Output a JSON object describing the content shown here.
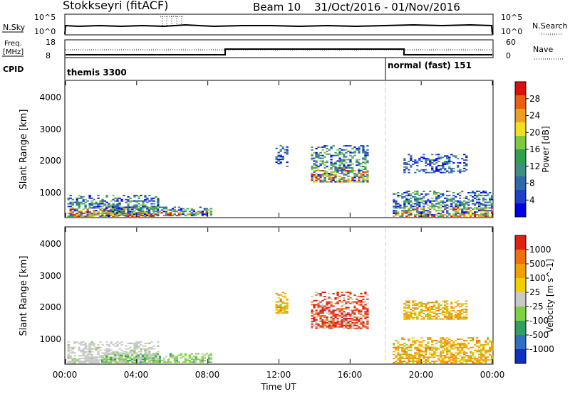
{
  "header": {
    "title": "Stokkseyri (fitACF)",
    "beam": "Beam 10",
    "date_range": "31/Oct/2016 - 01/Nov/2016"
  },
  "status_panels": {
    "nsky_label": "N.Sky",
    "nsky_ticks": [
      "10^5",
      "10^0"
    ],
    "nsearch_label": "N.Search",
    "nsearch_ticks": [
      "10^5",
      "10^0"
    ],
    "freq_label_1": "Freq.",
    "freq_label_2": "[MHz]",
    "freq_ticks": [
      "18",
      "8"
    ],
    "nave_label": "Nave",
    "nave_ticks": [
      "60",
      "0"
    ],
    "cpid_label": "CPID",
    "cpid_1": "themis 3300",
    "cpid_2": "normal (fast) 151"
  },
  "axes": {
    "xlabel": "Time UT",
    "x_ticks": [
      "00:00",
      "04:00",
      "08:00",
      "12:00",
      "16:00",
      "20:00",
      "00:00"
    ],
    "ylabel": "Slant Range [km]",
    "y_ticks": [
      "4000",
      "3000",
      "2000",
      "1000"
    ]
  },
  "chart_data": [
    {
      "type": "heatmap",
      "panel": "power",
      "ylabel": "Slant Range [km]",
      "xlabel": "Time UT",
      "x_range_hours": [
        0,
        24
      ],
      "y_range_km": [
        180,
        4600
      ],
      "colorbar_label": "Power [dB]",
      "colorbar_ticks": [
        "28",
        "24",
        "20",
        "16",
        "12",
        "8",
        "4"
      ],
      "colorbar_colors": [
        "#0000e6",
        "#2040c8",
        "#2f6aa8",
        "#3f8f80",
        "#2fa050",
        "#80c840",
        "#f0e020",
        "#f0a020",
        "#e86010",
        "#dd1010"
      ],
      "regions": [
        {
          "t": [
            0.1,
            5.2
          ],
          "r": [
            180,
            900
          ],
          "level": "mixed"
        },
        {
          "t": [
            2.0,
            8.2
          ],
          "r": [
            200,
            500
          ],
          "level": "mixed"
        },
        {
          "t": [
            11.8,
            12.4
          ],
          "r": [
            1800,
            2500
          ],
          "level": "low"
        },
        {
          "t": [
            13.8,
            17.0
          ],
          "r": [
            1300,
            2500
          ],
          "level": "mixed"
        },
        {
          "t": [
            18.4,
            24.0
          ],
          "r": [
            180,
            1000
          ],
          "level": "mixed"
        },
        {
          "t": [
            19.0,
            22.5
          ],
          "r": [
            1600,
            2200
          ],
          "level": "low"
        }
      ],
      "dashed_marker_hour": 18.0
    },
    {
      "type": "heatmap",
      "panel": "velocity",
      "ylabel": "Slant Range [km]",
      "xlabel": "Time UT",
      "x_range_hours": [
        0,
        24
      ],
      "y_range_km": [
        180,
        4600
      ],
      "colorbar_label": "Velocity [m s^-1]",
      "colorbar_ticks": [
        "1000",
        "500",
        "100",
        "25",
        "-25",
        "-100",
        "-500",
        "-1000"
      ],
      "colorbar_colors": [
        "#1030c0",
        "#3070c0",
        "#30a060",
        "#80d040",
        "#c8c8c8",
        "#f0d000",
        "#f0a000",
        "#f07010",
        "#e02010"
      ],
      "regions": [
        {
          "t": [
            0.1,
            5.2
          ],
          "r": [
            180,
            900
          ],
          "level": "ground"
        },
        {
          "t": [
            2.0,
            8.2
          ],
          "r": [
            200,
            500
          ],
          "level": "green"
        },
        {
          "t": [
            11.8,
            12.4
          ],
          "r": [
            1800,
            2500
          ],
          "level": "orange"
        },
        {
          "t": [
            13.8,
            17.0
          ],
          "r": [
            1300,
            2500
          ],
          "level": "red"
        },
        {
          "t": [
            18.4,
            24.0
          ],
          "r": [
            180,
            1000
          ],
          "level": "orange"
        },
        {
          "t": [
            19.0,
            22.5
          ],
          "r": [
            1600,
            2200
          ],
          "level": "orange"
        }
      ],
      "dashed_marker_hour": 18.0
    }
  ]
}
